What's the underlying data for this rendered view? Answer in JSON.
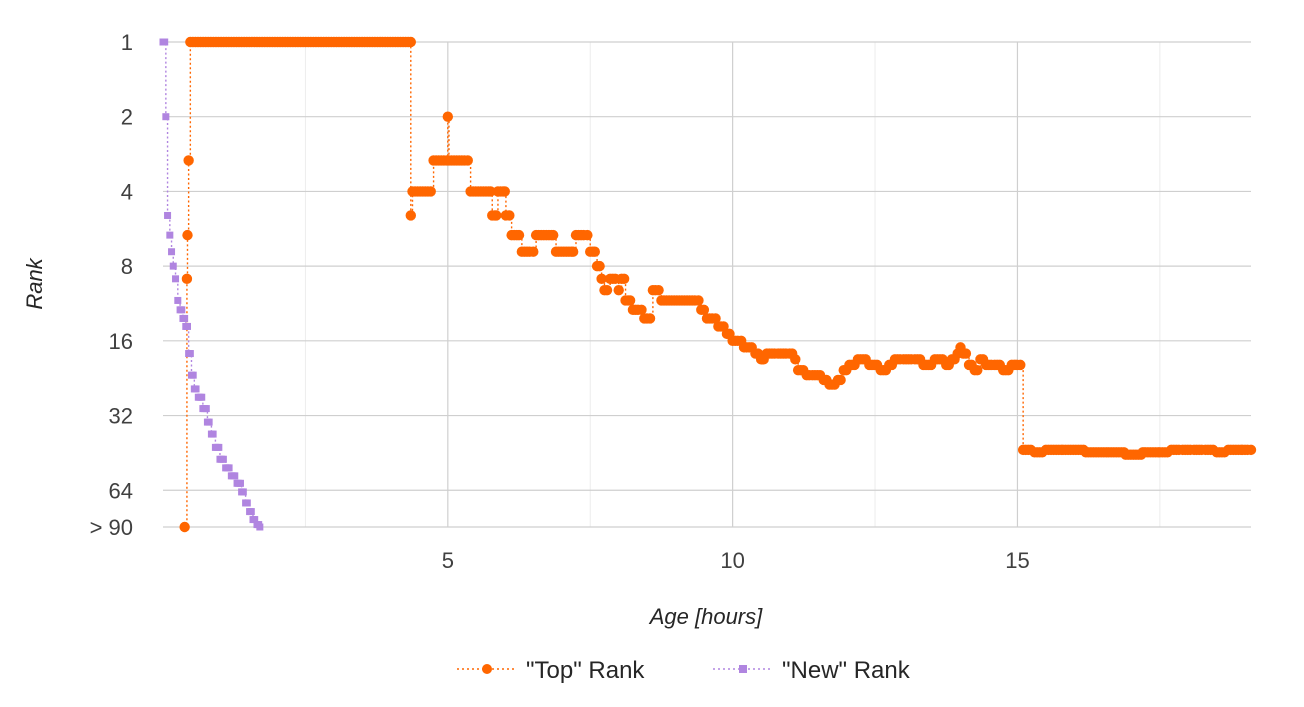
{
  "chart_data": {
    "type": "line",
    "title": "",
    "xlabel": "Age [hours]",
    "ylabel": "Rank",
    "y_scale": "log2",
    "y_inverted": true,
    "xlim": [
      0,
      19.1
    ],
    "ylim": [
      1,
      90
    ],
    "x_ticks": [
      5,
      10,
      15
    ],
    "x_tick_labels": [
      "5",
      "10",
      "15"
    ],
    "y_ticks": [
      1,
      2,
      4,
      8,
      16,
      32,
      64,
      90
    ],
    "y_tick_labels": [
      "1",
      "2",
      "4",
      "8",
      "16",
      "32",
      "64",
      "> 90"
    ],
    "grid": true,
    "legend_position": "bottom-center",
    "series": [
      {
        "name": "\"Top\" Rank",
        "color": "#ff6600",
        "marker": "circle",
        "line_style": "dotted",
        "points": [
          [
            0.38,
            90
          ],
          [
            0.42,
            9
          ],
          [
            0.43,
            6
          ],
          [
            0.45,
            3
          ],
          [
            0.48,
            1
          ],
          [
            4.35,
            1
          ],
          [
            4.35,
            5
          ],
          [
            4.38,
            4
          ],
          [
            4.7,
            4
          ],
          [
            4.75,
            3
          ],
          [
            4.98,
            3
          ],
          [
            5.0,
            2
          ],
          [
            5.02,
            3
          ],
          [
            5.35,
            3
          ],
          [
            5.4,
            4
          ],
          [
            5.75,
            4
          ],
          [
            5.78,
            5
          ],
          [
            5.85,
            5
          ],
          [
            5.88,
            4
          ],
          [
            6.0,
            4
          ],
          [
            6.02,
            5
          ],
          [
            6.08,
            5
          ],
          [
            6.12,
            6
          ],
          [
            6.25,
            6
          ],
          [
            6.3,
            7
          ],
          [
            6.5,
            7
          ],
          [
            6.55,
            6
          ],
          [
            6.85,
            6
          ],
          [
            6.9,
            7
          ],
          [
            7.2,
            7
          ],
          [
            7.25,
            6
          ],
          [
            7.45,
            6
          ],
          [
            7.5,
            7
          ],
          [
            7.58,
            7
          ],
          [
            7.62,
            8
          ],
          [
            7.7,
            9
          ],
          [
            7.75,
            10
          ],
          [
            7.85,
            9
          ],
          [
            8.0,
            10
          ],
          [
            8.05,
            9
          ],
          [
            8.12,
            11
          ],
          [
            8.2,
            11
          ],
          [
            8.25,
            12
          ],
          [
            8.4,
            12
          ],
          [
            8.45,
            13
          ],
          [
            8.55,
            13
          ],
          [
            8.6,
            10
          ],
          [
            8.7,
            10
          ],
          [
            8.75,
            11
          ],
          [
            9.4,
            11
          ],
          [
            9.45,
            12
          ],
          [
            9.55,
            13
          ],
          [
            9.7,
            13
          ],
          [
            9.75,
            14
          ],
          [
            9.9,
            15
          ],
          [
            10.0,
            16
          ],
          [
            10.15,
            16
          ],
          [
            10.2,
            17
          ],
          [
            10.4,
            18
          ],
          [
            10.5,
            19
          ],
          [
            10.6,
            18
          ],
          [
            10.8,
            18
          ],
          [
            11.0,
            18
          ],
          [
            11.1,
            19
          ],
          [
            11.15,
            21
          ],
          [
            11.3,
            22
          ],
          [
            11.4,
            22
          ],
          [
            11.6,
            23
          ],
          [
            11.7,
            24
          ],
          [
            11.85,
            23
          ],
          [
            11.95,
            21
          ],
          [
            12.05,
            20
          ],
          [
            12.2,
            19
          ],
          [
            12.4,
            20
          ],
          [
            12.6,
            21
          ],
          [
            12.75,
            20
          ],
          [
            12.85,
            19
          ],
          [
            13.0,
            19
          ],
          [
            13.2,
            19
          ],
          [
            13.35,
            20
          ],
          [
            13.55,
            19
          ],
          [
            13.75,
            20
          ],
          [
            13.85,
            19
          ],
          [
            13.95,
            18
          ],
          [
            14.0,
            17
          ],
          [
            14.05,
            18
          ],
          [
            14.15,
            20
          ],
          [
            14.25,
            21
          ],
          [
            14.35,
            19
          ],
          [
            14.45,
            20
          ],
          [
            14.6,
            20
          ],
          [
            14.75,
            21
          ],
          [
            14.9,
            20
          ],
          [
            15.05,
            20
          ],
          [
            15.1,
            44
          ],
          [
            15.3,
            45
          ],
          [
            15.5,
            44
          ],
          [
            15.8,
            44
          ],
          [
            16.2,
            45
          ],
          [
            16.6,
            45
          ],
          [
            16.9,
            46
          ],
          [
            17.2,
            45
          ],
          [
            17.5,
            45
          ],
          [
            17.7,
            44
          ],
          [
            17.9,
            44
          ],
          [
            18.1,
            44
          ],
          [
            18.3,
            44
          ],
          [
            18.5,
            45
          ],
          [
            18.7,
            44
          ],
          [
            18.95,
            44
          ],
          [
            19.1,
            44
          ]
        ]
      },
      {
        "name": "\"New\" Rank",
        "color": "#b085e0",
        "marker": "square",
        "line_style": "dotted",
        "points": [
          [
            0.0,
            1
          ],
          [
            0.05,
            2
          ],
          [
            0.08,
            5
          ],
          [
            0.12,
            6
          ],
          [
            0.15,
            7
          ],
          [
            0.18,
            8
          ],
          [
            0.22,
            9
          ],
          [
            0.26,
            11
          ],
          [
            0.3,
            12
          ],
          [
            0.35,
            13
          ],
          [
            0.4,
            14
          ],
          [
            0.45,
            18
          ],
          [
            0.5,
            22
          ],
          [
            0.55,
            25
          ],
          [
            0.62,
            27
          ],
          [
            0.7,
            30
          ],
          [
            0.78,
            34
          ],
          [
            0.85,
            38
          ],
          [
            0.92,
            43
          ],
          [
            1.0,
            48
          ],
          [
            1.1,
            52
          ],
          [
            1.2,
            56
          ],
          [
            1.3,
            60
          ],
          [
            1.38,
            65
          ],
          [
            1.45,
            72
          ],
          [
            1.52,
            78
          ],
          [
            1.58,
            84
          ],
          [
            1.65,
            88
          ],
          [
            1.7,
            90
          ]
        ]
      }
    ]
  }
}
